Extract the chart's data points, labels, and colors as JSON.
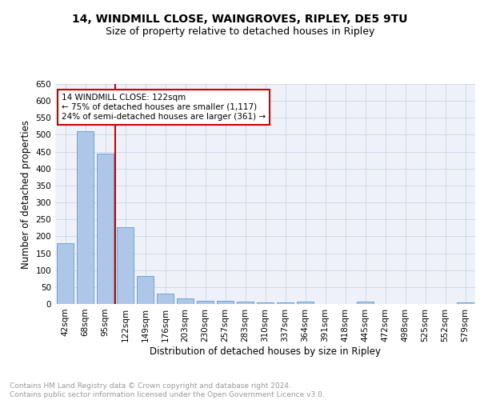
{
  "title1": "14, WINDMILL CLOSE, WAINGROVES, RIPLEY, DE5 9TU",
  "title2": "Size of property relative to detached houses in Ripley",
  "xlabel": "Distribution of detached houses by size in Ripley",
  "ylabel": "Number of detached properties",
  "bar_labels": [
    "42sqm",
    "68sqm",
    "95sqm",
    "122sqm",
    "149sqm",
    "176sqm",
    "203sqm",
    "230sqm",
    "257sqm",
    "283sqm",
    "310sqm",
    "337sqm",
    "364sqm",
    "391sqm",
    "418sqm",
    "445sqm",
    "472sqm",
    "498sqm",
    "525sqm",
    "552sqm",
    "579sqm"
  ],
  "bar_values": [
    180,
    510,
    445,
    228,
    83,
    30,
    16,
    10,
    9,
    6,
    5,
    4,
    8,
    0,
    0,
    6,
    0,
    0,
    0,
    0,
    5
  ],
  "bar_color": "#aec6e8",
  "bar_edge_color": "#5a9fd4",
  "vline_x_idx": 3,
  "vline_color": "#cc0000",
  "annotation_text": "14 WINDMILL CLOSE: 122sqm\n← 75% of detached houses are smaller (1,117)\n24% of semi-detached houses are larger (361) →",
  "annotation_box_color": "#ffffff",
  "annotation_box_edge": "#cc0000",
  "ylim": [
    0,
    650
  ],
  "yticks": [
    0,
    50,
    100,
    150,
    200,
    250,
    300,
    350,
    400,
    450,
    500,
    550,
    600,
    650
  ],
  "grid_color": "#d0d8e8",
  "bg_color": "#eef2f8",
  "footnote": "Contains HM Land Registry data © Crown copyright and database right 2024.\nContains public sector information licensed under the Open Government Licence v3.0.",
  "title1_fontsize": 10,
  "title2_fontsize": 9,
  "xlabel_fontsize": 8.5,
  "ylabel_fontsize": 8.5,
  "tick_fontsize": 7.5,
  "annot_fontsize": 7.5,
  "footnote_fontsize": 6.5
}
